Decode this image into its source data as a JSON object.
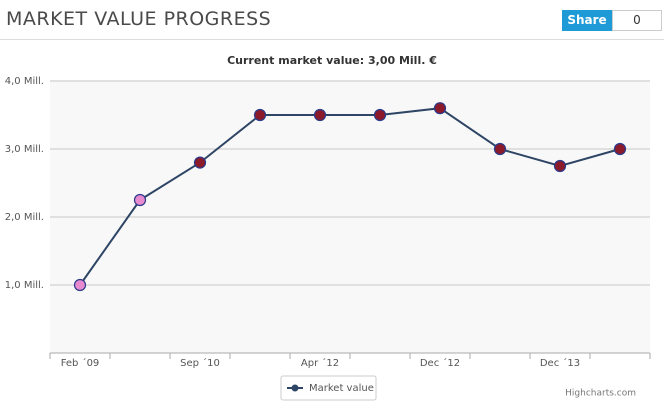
{
  "header": {
    "title": "MARKET VALUE PROGRESS",
    "share": "Share",
    "share_count": 0
  },
  "chart_data": {
    "type": "line",
    "title": "Current market value: 3,00 Mill. €",
    "categories": [
      "Feb ´09",
      null,
      "Sep ´10",
      null,
      "Apr ´12",
      null,
      "Dec ´12",
      null,
      "Dec ´13",
      null
    ],
    "series": [
      {
        "name": "Market value",
        "color": "#2f4565",
        "values": [
          1.0,
          2.25,
          2.8,
          3.5,
          3.5,
          3.5,
          3.6,
          3.0,
          2.75,
          3.0
        ],
        "marker_colors": [
          "#e88ad0",
          "#e88ad0",
          "#8b1a2b",
          "#8b1a2b",
          "#8b1a2b",
          "#8b1a2b",
          "#8b1a2b",
          "#8b1a2b",
          "#8b1a2b",
          "#8b1a2b"
        ]
      }
    ],
    "ylim": [
      0,
      4
    ],
    "yticks": [
      {
        "value": 1,
        "label": "1,0 Mill."
      },
      {
        "value": 2,
        "label": "2,0 Mill."
      },
      {
        "value": 3,
        "label": "3,0 Mill."
      },
      {
        "value": 4,
        "label": "4,0 Mill."
      }
    ],
    "grid": true,
    "credit": "Highcharts.com"
  }
}
